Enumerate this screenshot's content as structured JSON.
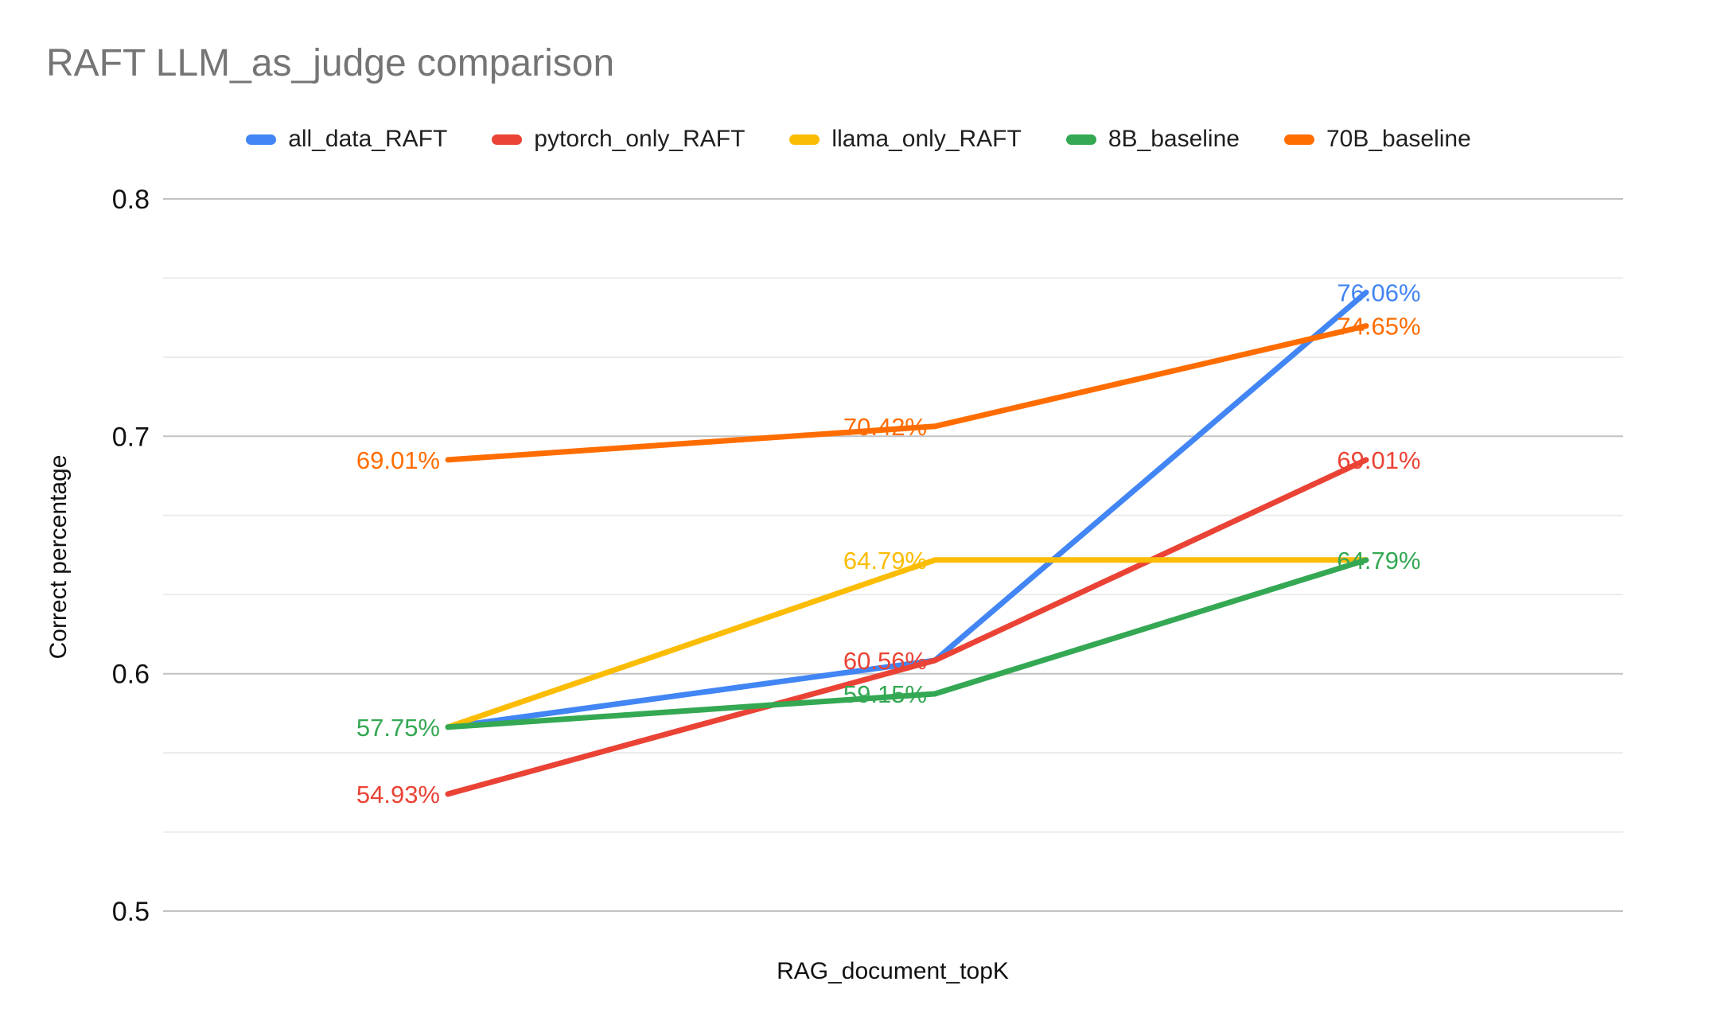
{
  "title": "RAFT LLM_as_judge comparison",
  "chart_data": {
    "type": "line",
    "title": "RAFT LLM_as_judge comparison",
    "x_axis": {
      "title": "RAG_document_topK",
      "num_points": 3,
      "tick_labels": [
        "",
        "",
        ""
      ]
    },
    "y_axis": {
      "title": "Correct percentage",
      "ylim": [
        0.5,
        0.8
      ],
      "ticks": [
        {
          "label": "0.8",
          "value": 0.8
        },
        {
          "label": "0.7",
          "value": 0.7
        },
        {
          "label": "0.6",
          "value": 0.6
        },
        {
          "label": "0.5",
          "value": 0.5
        }
      ],
      "minor_gridlines_between_majors": 2
    },
    "legend_position": "top",
    "grid": true,
    "series": [
      {
        "name": "all_data_RAFT",
        "color": "#4285F4",
        "values": [
          0.5775,
          0.6056,
          0.7606
        ],
        "point_labels": [
          "57.75%",
          "60.56%",
          "76.06%"
        ],
        "labels_visible": [
          false,
          false,
          true
        ]
      },
      {
        "name": "pytorch_only_RAFT",
        "color": "#EA4335",
        "values": [
          0.5493,
          0.6056,
          0.6901
        ],
        "point_labels": [
          "54.93%",
          "60.56%",
          "69.01%"
        ],
        "labels_visible": [
          true,
          true,
          true
        ]
      },
      {
        "name": "llama_only_RAFT",
        "color": "#FBBC04",
        "values": [
          0.5775,
          0.6479,
          0.6479
        ],
        "point_labels": [
          "57.75%",
          "64.79%",
          "64.79%"
        ],
        "labels_visible": [
          false,
          true,
          false
        ]
      },
      {
        "name": "8B_baseline",
        "color": "#34A853",
        "values": [
          0.5775,
          0.5915,
          0.6479
        ],
        "point_labels": [
          "57.75%",
          "59.15%",
          "64.79%"
        ],
        "labels_visible": [
          true,
          true,
          true
        ]
      },
      {
        "name": "70B_baseline",
        "color": "#FF6D01",
        "values": [
          0.6901,
          0.7042,
          0.7465
        ],
        "point_labels": [
          "69.01%",
          "70.42%",
          "74.65%"
        ],
        "labels_visible": [
          true,
          true,
          true
        ]
      }
    ],
    "colors": {
      "title_text": "#757575",
      "axis_text": "#111111",
      "major_gridline": "#c2c2c2",
      "minor_gridline": "#ebebeb",
      "background": "#ffffff"
    }
  }
}
